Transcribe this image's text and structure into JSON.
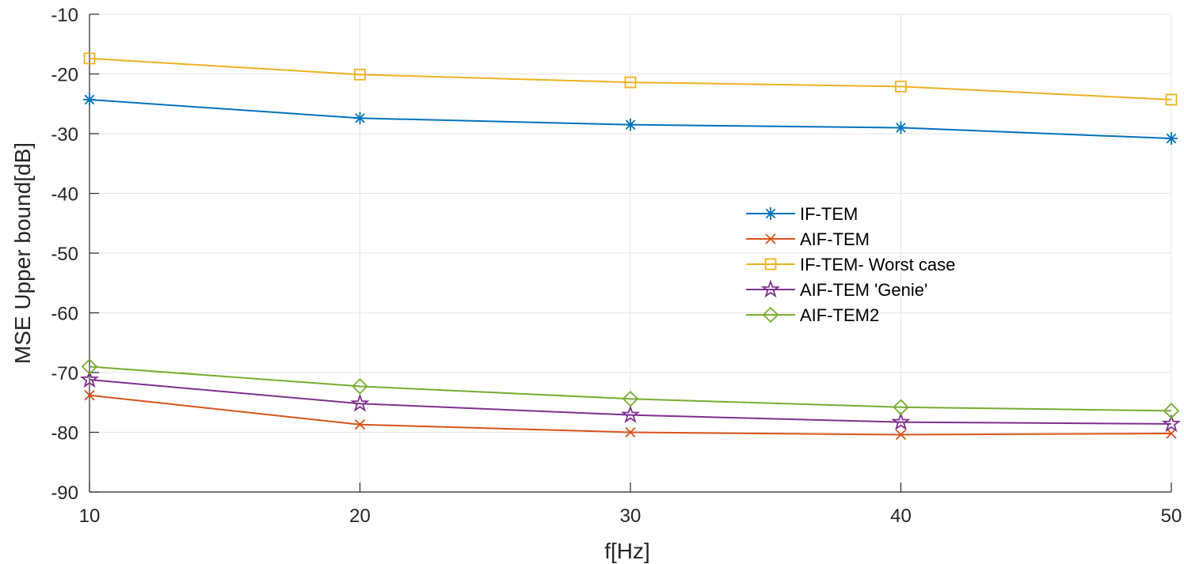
{
  "chart_data": {
    "type": "line",
    "title": "",
    "xlabel": "f[Hz]",
    "ylabel": "MSE Upper bound[dB]",
    "x": [
      10,
      20,
      30,
      40,
      50
    ],
    "xlim": [
      10,
      50
    ],
    "ylim": [
      -90,
      -10
    ],
    "xticks": [
      "10",
      "20",
      "30",
      "40",
      "50"
    ],
    "yticks": [
      "-90",
      "-80",
      "-70",
      "-60",
      "-50",
      "-40",
      "-30",
      "-20",
      "-10"
    ],
    "grid": true,
    "legend_position": "center-right",
    "series": [
      {
        "name": "IF-TEM",
        "values": [
          -24.3,
          -27.4,
          -28.5,
          -29.0,
          -30.8
        ],
        "color": "#0072BD",
        "marker": "asterisk"
      },
      {
        "name": "AIF-TEM",
        "values": [
          -73.8,
          -78.7,
          -80.0,
          -80.4,
          -80.2
        ],
        "color": "#D95319",
        "marker": "x"
      },
      {
        "name": "IF-TEM- Worst case",
        "values": [
          -17.4,
          -20.1,
          -21.4,
          -22.1,
          -24.3
        ],
        "color": "#EDB120",
        "marker": "square"
      },
      {
        "name": "AIF-TEM 'Genie'",
        "values": [
          -71.2,
          -75.2,
          -77.1,
          -78.3,
          -78.6
        ],
        "color": "#7E2F8E",
        "marker": "pentagram"
      },
      {
        "name": "AIF-TEM2",
        "values": [
          -69.0,
          -72.3,
          -74.4,
          -75.8,
          -76.4
        ],
        "color": "#77AC30",
        "marker": "diamond"
      }
    ]
  }
}
